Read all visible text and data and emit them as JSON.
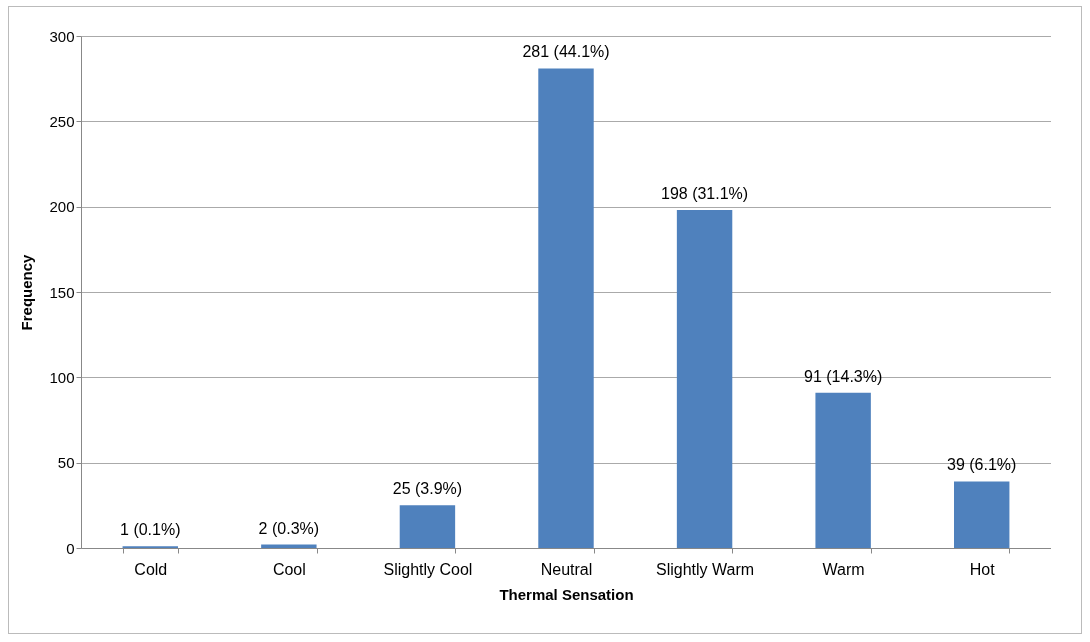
{
  "chart_data": {
    "type": "bar",
    "xlabel": "Thermal Sensation",
    "ylabel": "Frequency",
    "categories": [
      "Cold",
      "Cool",
      "Slightly Cool",
      "Neutral",
      "Slightly Warm",
      "Warm",
      "Hot"
    ],
    "values": [
      1,
      2,
      25,
      281,
      198,
      91,
      39
    ],
    "value_labels": [
      "1 (0.1%)",
      "2 (0.3%)",
      "25 (3.9%)",
      "281 (44.1%)",
      "198 (31.1%)",
      "91 (14.3%)",
      "39 (6.1%)"
    ],
    "color": "#4f81bd",
    "ylim": [
      0,
      300
    ],
    "yticks": [
      0,
      50,
      100,
      150,
      200,
      250,
      300
    ],
    "grid": "y"
  }
}
